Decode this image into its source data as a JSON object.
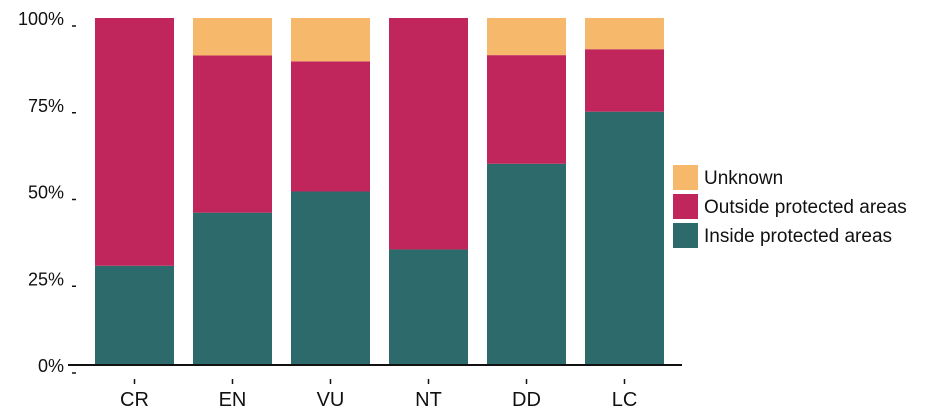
{
  "chart_data": {
    "type": "bar",
    "stacked": true,
    "normalized": true,
    "categories": [
      "CR",
      "EN",
      "VU",
      "NT",
      "DD",
      "LC"
    ],
    "series": [
      {
        "name": "Inside protected areas",
        "color": "#2d6a6c",
        "values": [
          28.6,
          43.9,
          50.0,
          33.3,
          58.0,
          73.0
        ]
      },
      {
        "name": "Outside protected areas",
        "color": "#c0265b",
        "values": [
          71.4,
          45.3,
          37.5,
          66.7,
          31.3,
          18.0
        ]
      },
      {
        "name": "Unknown",
        "color": "#f6b86b",
        "values": [
          0.0,
          10.8,
          12.5,
          0.0,
          10.7,
          9.0
        ]
      }
    ],
    "yticks": [
      "0%",
      "25%",
      "50%",
      "75%",
      "100%"
    ],
    "ylim": [
      0,
      100
    ],
    "legend": {
      "placement": "right",
      "entries": [
        "Unknown",
        "Outside protected areas",
        "Inside protected areas"
      ]
    },
    "grid": false
  }
}
